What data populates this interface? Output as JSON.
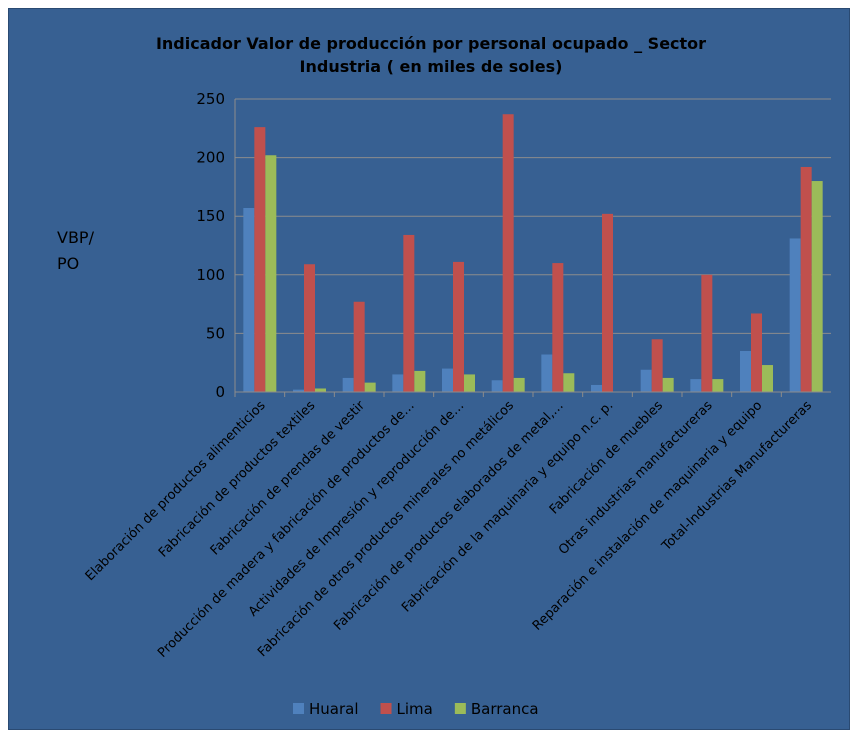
{
  "chart_data": {
    "type": "bar",
    "title_lines": [
      "Indicador Valor de producción por personal ocupado _ Sector",
      "Industria ( en miles de soles)"
    ],
    "ylabel_lines": [
      "VBP/",
      "PO"
    ],
    "xlabel": "",
    "ylim": [
      0,
      250
    ],
    "yticks": [
      0,
      50,
      100,
      150,
      200,
      250
    ],
    "grid": true,
    "legend_position": "bottom",
    "categories": [
      "Elaboración de productos alimenticios",
      "Fabricación de productos textiles",
      "Fabricación de prendas de vestir",
      "Producción de madera y fabricación de productos de…",
      "Actividades de Impresión y reproducción de…",
      "Fabricación de otros productos minerales no metálicos",
      "Fabricación de productos elaborados de metal,…",
      "Fabricación de la maquinaria y equipo n.c. p.",
      "Fabricación de muebles",
      "Otras industrias manufactureras",
      "Reparación e instalación de maquinaria y equipo",
      "Total-Industrias Manufactureras"
    ],
    "series": [
      {
        "name": "Huaral",
        "color": "#4f81bd",
        "values": [
          157,
          2,
          12,
          15,
          20,
          10,
          32,
          6,
          19,
          11,
          35,
          131
        ]
      },
      {
        "name": "Lima",
        "color": "#c0504d",
        "values": [
          226,
          109,
          77,
          134,
          111,
          237,
          110,
          152,
          45,
          100,
          67,
          192
        ]
      },
      {
        "name": "Barranca",
        "color": "#9bbb59",
        "values": [
          202,
          3,
          8,
          18,
          15,
          12,
          16,
          0,
          12,
          11,
          23,
          180
        ]
      }
    ]
  }
}
